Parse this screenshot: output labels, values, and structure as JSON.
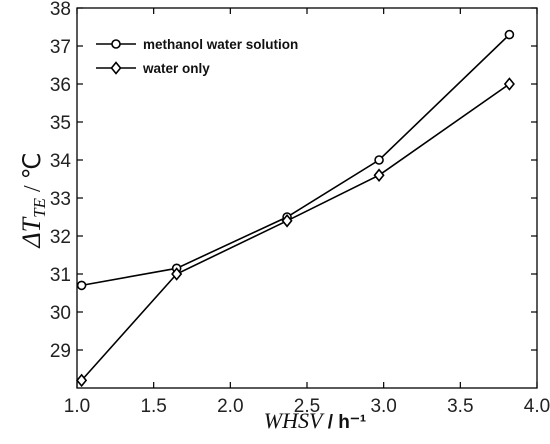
{
  "chart_data": {
    "type": "line",
    "xlabel": {
      "italic": "WHSV",
      "rest": " / h⁻¹"
    },
    "ylabel": {
      "prefix": "ΔT",
      "subscript": "TE",
      "suffix": " / ℃"
    },
    "xlim": [
      1.0,
      4.0
    ],
    "ylim": [
      28.0,
      38.0
    ],
    "xticks": [
      1.0,
      1.5,
      2.0,
      2.5,
      3.0,
      3.5,
      4.0
    ],
    "xtick_labels": [
      "1.0",
      "1.5",
      "2.0",
      "2.5",
      "3.0",
      "3.5",
      "4.0"
    ],
    "yticks": [
      29,
      30,
      31,
      32,
      33,
      34,
      35,
      36,
      37,
      38
    ],
    "ytick_labels": [
      "29",
      "30",
      "31",
      "32",
      "33",
      "34",
      "35",
      "36",
      "37",
      "38"
    ],
    "grid": false,
    "legend_position": "top-left",
    "series": [
      {
        "name": "methanol water solution",
        "marker": "circle",
        "color": "#000000",
        "x": [
          1.03,
          1.65,
          2.37,
          2.97,
          3.82
        ],
        "y": [
          30.7,
          31.15,
          32.5,
          34.0,
          37.3
        ]
      },
      {
        "name": "water only",
        "marker": "diamond",
        "color": "#000000",
        "x": [
          1.03,
          1.65,
          2.37,
          2.97,
          3.82
        ],
        "y": [
          28.2,
          31.0,
          32.4,
          33.6,
          36.0
        ]
      }
    ]
  }
}
